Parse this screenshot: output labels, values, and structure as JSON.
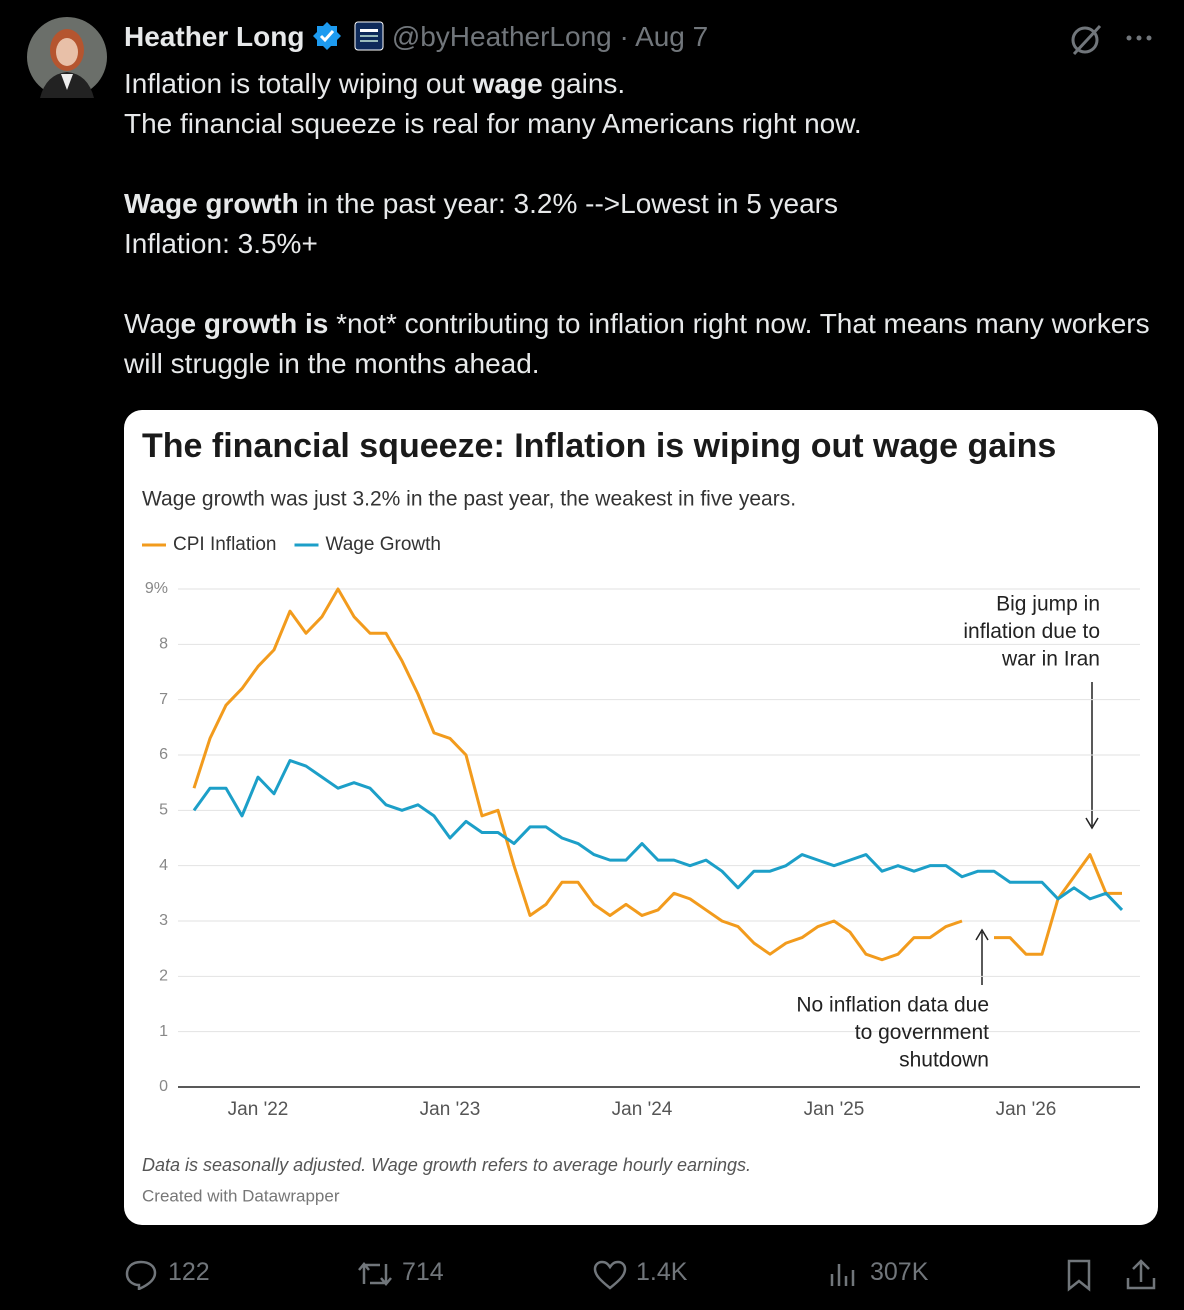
{
  "tweet": {
    "author": "Heather Long",
    "handle": "@byHeatherLong",
    "separator": "·",
    "date": "Aug 7",
    "paragraphs": [
      [
        [
          {
            "text": "Inflation is totally wiping out ",
            "bold": false
          },
          {
            "text": "wage",
            "bold": true
          },
          {
            "text": " gains.",
            "bold": false
          }
        ],
        [
          {
            "text": "The financial squeeze is real for many Americans right now.",
            "bold": false
          }
        ]
      ],
      [
        [
          {
            "text": "Wage growth",
            "bold": true
          },
          {
            "text": " in the past year: 3.2% -->Lowest in 5 years",
            "bold": false
          }
        ],
        [
          {
            "text": "Inflation: 3.5%+",
            "bold": false
          }
        ]
      ],
      [
        [
          {
            "text": "Wag",
            "bold": false
          },
          {
            "text": "e growth is",
            "bold": true
          },
          {
            "text": " *not* contributing to inflation right now. That means many workers will struggle in the months ahead.",
            "bold": false
          }
        ]
      ]
    ],
    "stats": {
      "replies": "122",
      "reposts": "714",
      "likes": "1.4K",
      "views": "307K"
    }
  },
  "chart_data": {
    "type": "line",
    "title": "The financial squeeze: Inflation is wiping out wage gains",
    "subtitle": "Wage growth was just 3.2% in the past year, the weakest in five years.",
    "categories": [
      null,
      null,
      null,
      null,
      "Jan '22",
      null,
      null,
      null,
      null,
      null,
      null,
      null,
      null,
      null,
      null,
      null,
      "Jan '23",
      null,
      null,
      null,
      null,
      null,
      null,
      null,
      null,
      null,
      null,
      null,
      "Jan '24",
      null,
      null,
      null,
      null,
      null,
      null,
      null,
      null,
      null,
      null,
      null,
      "Jan '25",
      null,
      null,
      null,
      null,
      null,
      null,
      null,
      null,
      null,
      null,
      null,
      "Jan '26",
      null,
      null,
      null,
      null,
      null,
      null
    ],
    "series": [
      {
        "name": "CPI Inflation",
        "color": "#f29b1d",
        "values": [
          5.4,
          6.3,
          6.9,
          7.2,
          7.6,
          7.9,
          8.6,
          8.2,
          8.5,
          9.0,
          8.5,
          8.2,
          8.2,
          7.7,
          7.1,
          6.4,
          6.3,
          6.0,
          4.9,
          5.0,
          4.0,
          3.1,
          3.3,
          3.7,
          3.7,
          3.3,
          3.1,
          3.3,
          3.1,
          3.2,
          3.5,
          3.4,
          3.2,
          3.0,
          2.9,
          2.6,
          2.4,
          2.6,
          2.7,
          2.9,
          3.0,
          2.8,
          2.4,
          2.3,
          2.4,
          2.7,
          2.7,
          2.9,
          3.0,
          null,
          2.7,
          2.7,
          2.4,
          2.4,
          3.4,
          3.8,
          4.2,
          3.5,
          3.5
        ]
      },
      {
        "name": "Wage Growth",
        "color": "#1c9fc8",
        "values": [
          5.0,
          5.4,
          5.4,
          4.9,
          5.6,
          5.3,
          5.9,
          5.8,
          5.6,
          5.4,
          5.5,
          5.4,
          5.1,
          5.0,
          5.1,
          4.9,
          4.5,
          4.8,
          4.6,
          4.6,
          4.4,
          4.7,
          4.7,
          4.5,
          4.4,
          4.2,
          4.1,
          4.1,
          4.4,
          4.1,
          4.1,
          4.0,
          4.1,
          3.9,
          3.6,
          3.9,
          3.9,
          4.0,
          4.2,
          4.1,
          4.0,
          4.1,
          4.2,
          3.9,
          4.0,
          3.9,
          4.0,
          4.0,
          3.8,
          3.9,
          3.9,
          3.7,
          3.7,
          3.7,
          3.4,
          3.6,
          3.4,
          3.5,
          3.2
        ]
      }
    ],
    "ylim": [
      0,
      9
    ],
    "yticks": [
      0,
      1,
      2,
      3,
      4,
      5,
      6,
      7,
      8,
      {
        "value": 9,
        "label": "9%"
      }
    ],
    "grid": true,
    "annotations": [
      {
        "lines": [
          "Big jump in",
          "inflation due to",
          "war in Iran"
        ]
      },
      {
        "lines": [
          "No inflation data due",
          "to government",
          "shutdown"
        ]
      }
    ],
    "notes": "Data is seasonally adjusted. Wage growth refers to average hourly earnings.",
    "credit": "Created with Datawrapper"
  }
}
